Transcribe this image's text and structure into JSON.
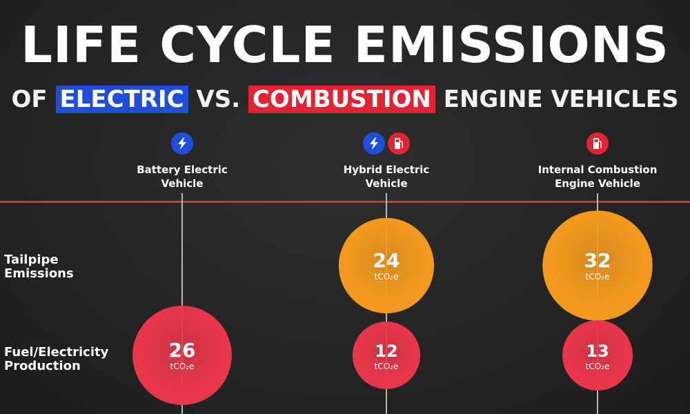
{
  "header": {
    "title": "LIFE CYCLE EMISSIONS",
    "subtitle_prefix": "OF",
    "subtitle_electric": "ELECTRIC",
    "subtitle_vs": "VS.",
    "subtitle_combustion": "COMBUSTION",
    "subtitle_suffix": "ENGINE VEHICLES"
  },
  "colors": {
    "electric": "#1f4fd8",
    "combustion": "#e02433",
    "tailpipe_bubble": "#f39a1e",
    "production_bubble": "#e8364b",
    "divider": "#d8303e"
  },
  "columns": [
    {
      "label_line1": "Battery Electric",
      "label_line2": "Vehicle",
      "icons": [
        "lightning-icon"
      ]
    },
    {
      "label_line1": "Hybrid Electric",
      "label_line2": "Vehicle",
      "icons": [
        "lightning-icon",
        "fuel-pump-icon"
      ]
    },
    {
      "label_line1": "Internal Combustion",
      "label_line2": "Engine Vehicle",
      "icons": [
        "fuel-pump-icon"
      ]
    }
  ],
  "rows": [
    {
      "label_line1": "Tailpipe",
      "label_line2": "Emissions"
    },
    {
      "label_line1": "Fuel/Electricity",
      "label_line2": "Production"
    }
  ],
  "chart_data": {
    "type": "bubble",
    "title": "LIFE CYCLE EMISSIONS",
    "subtitle": "OF ELECTRIC VS. COMBUSTION ENGINE VEHICLES",
    "unit": "tCO₂e",
    "categories": [
      "Battery Electric Vehicle",
      "Hybrid Electric Vehicle",
      "Internal Combustion Engine Vehicle"
    ],
    "series": [
      {
        "name": "Tailpipe Emissions",
        "values": [
          null,
          24,
          32
        ]
      },
      {
        "name": "Fuel/Electricity Production",
        "values": [
          26,
          12,
          13
        ]
      }
    ]
  }
}
